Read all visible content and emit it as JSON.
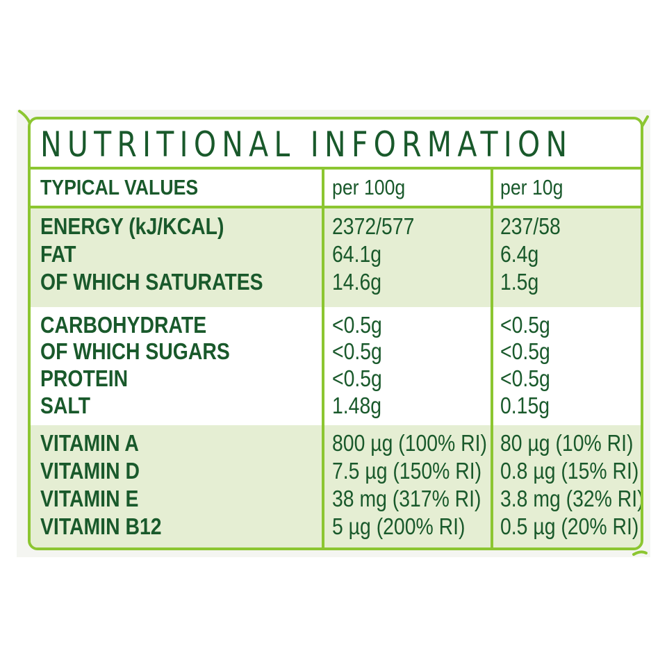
{
  "title": "NUTRITIONAL INFORMATION",
  "colors": {
    "border": "#8cc631",
    "text": "#19592b",
    "shade": "#e5eed3"
  },
  "header": {
    "label": "TYPICAL VALUES",
    "col1": "per 100g",
    "col2": "per 10g"
  },
  "groups": [
    {
      "rows": [
        {
          "label": "ENERGY (kJ/KCAL)",
          "per100": "2372/577",
          "per10": "237/58"
        },
        {
          "label": "FAT",
          "per100": "64.1g",
          "per10": "6.4g"
        },
        {
          "label": "OF WHICH SATURATES",
          "per100": "14.6g",
          "per10": "1.5g"
        }
      ]
    },
    {
      "rows": [
        {
          "label": "CARBOHYDRATE",
          "per100": "<0.5g",
          "per10": "<0.5g"
        },
        {
          "label": "OF WHICH SUGARS",
          "per100": "<0.5g",
          "per10": "<0.5g"
        },
        {
          "label": "PROTEIN",
          "per100": "<0.5g",
          "per10": "<0.5g"
        },
        {
          "label": "SALT",
          "per100": "1.48g",
          "per10": "0.15g"
        }
      ]
    },
    {
      "rows": [
        {
          "label": "VITAMIN A",
          "per100": "800 µg (100% RI)",
          "per10": "80 µg (10% RI)"
        },
        {
          "label": "VITAMIN D",
          "per100": "7.5 µg (150% RI)",
          "per10": "0.8 µg (15% RI)"
        },
        {
          "label": "VITAMIN E",
          "per100": "38 mg (317% RI)",
          "per10": "3.8 mg (32% RI)"
        },
        {
          "label": "VITAMIN B12",
          "per100": "5 µg (200% RI)",
          "per10": "0.5 µg (20% RI)"
        }
      ]
    }
  ]
}
